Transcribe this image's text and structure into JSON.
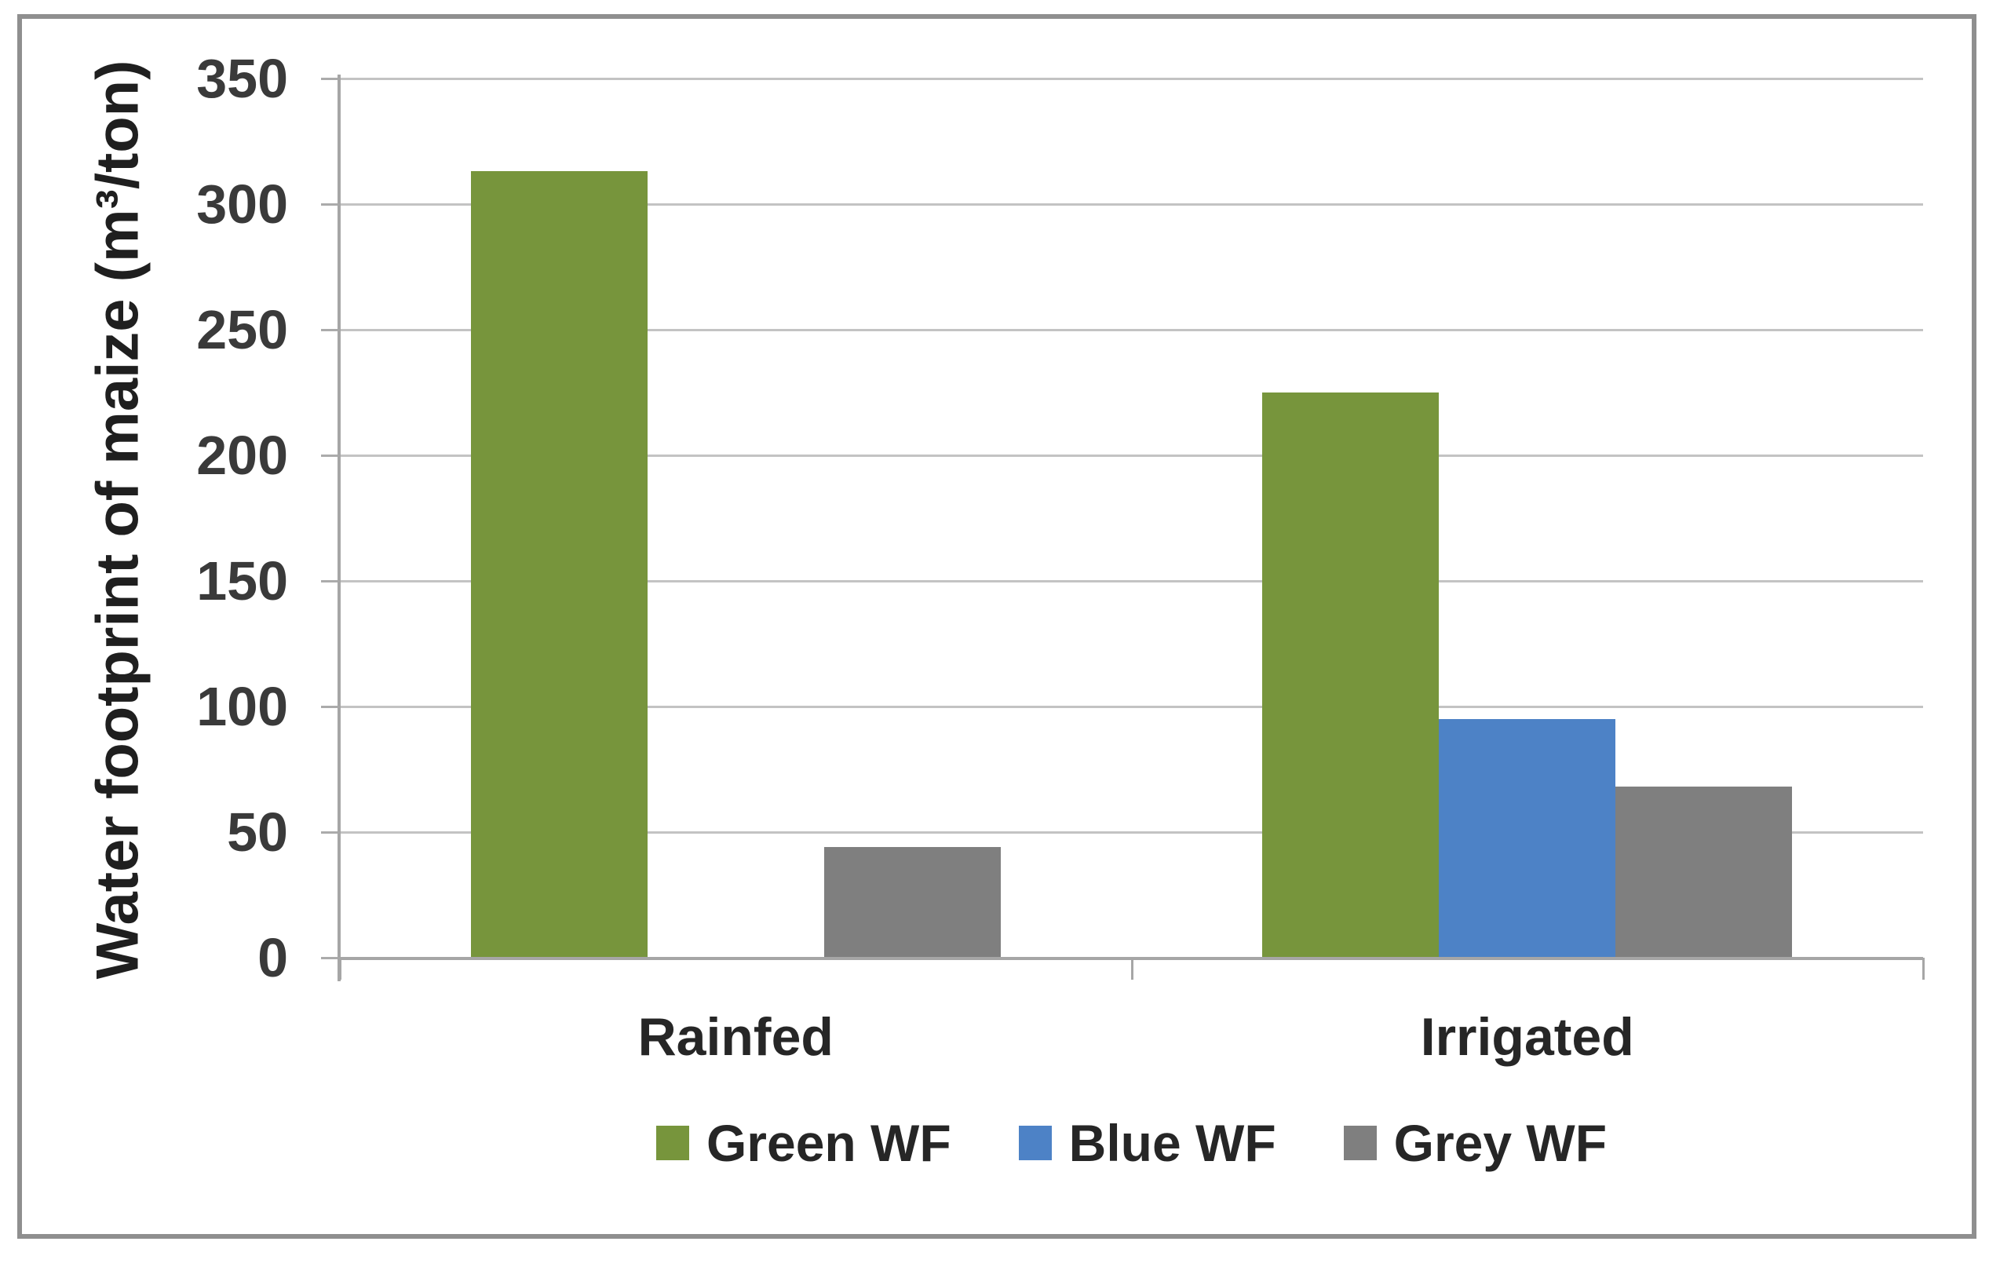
{
  "figure": {
    "background_color": "#FFFFFF",
    "frame_border_color": "#8F8F8F"
  },
  "axis_style": {
    "gridline_color": "#C3C3C3",
    "axis_line_color": "#A6A6A6",
    "tick_label_color": "#3A3A3A",
    "label_text_color": "#262626"
  },
  "chart_data": {
    "type": "bar",
    "title": "",
    "xlabel": "",
    "ylabel": "Water footprint of maize (m³/ton)",
    "categories": [
      "Rainfed",
      "Irrigated"
    ],
    "series": [
      {
        "name": "Green WF",
        "color": "#77953C",
        "values": [
          313,
          225
        ]
      },
      {
        "name": "Blue WF",
        "color": "#4D82C6",
        "values": [
          0,
          95
        ]
      },
      {
        "name": "Grey WF",
        "color": "#7F7F7F",
        "values": [
          44,
          68
        ]
      }
    ],
    "ylim": [
      0,
      350
    ],
    "yticks": [
      0,
      50,
      100,
      150,
      200,
      250,
      300,
      350
    ],
    "grid": true,
    "legend_position": "bottom"
  }
}
